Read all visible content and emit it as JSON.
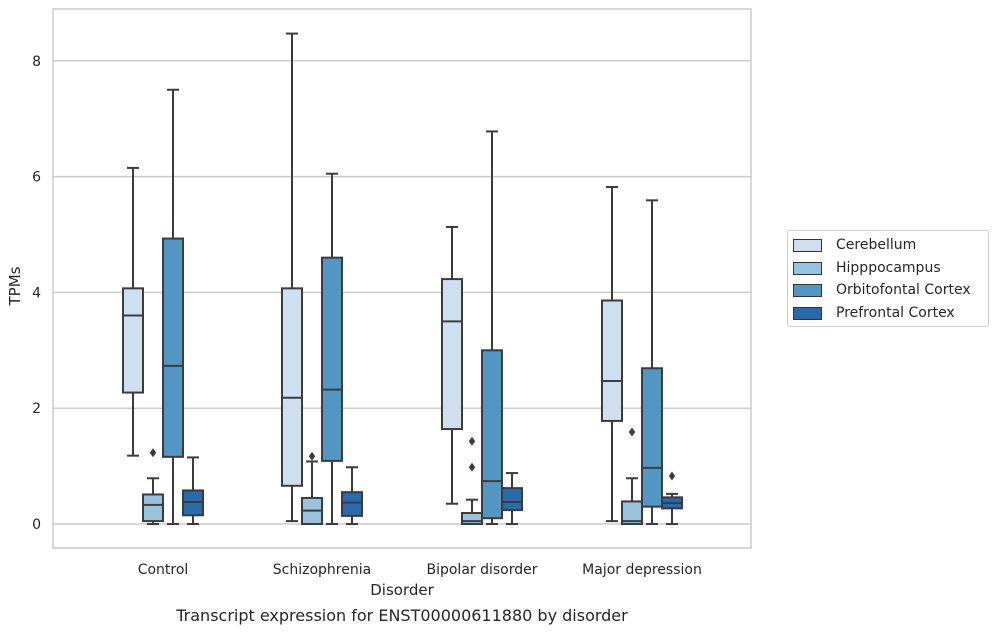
{
  "chart_data": {
    "type": "box",
    "title": "Transcript expression for ENST00000611880 by disorder",
    "xlabel": "Disorder",
    "ylabel": "TPMs",
    "ylim": [
      -0.4,
      8.9
    ],
    "yticks": [
      0,
      2,
      4,
      6,
      8
    ],
    "grid": "horizontal",
    "legend_position": "right",
    "categories": [
      "Control",
      "Schizophrenia",
      "Bipolar disorder",
      "Major depression"
    ],
    "series": [
      {
        "name": "Cerebellum",
        "color": "#d0dff0",
        "boxes": [
          {
            "whislo": 1.18,
            "q1": 2.27,
            "med": 3.6,
            "q3": 4.07,
            "whishi": 6.15,
            "fliers": []
          },
          {
            "whislo": 0.05,
            "q1": 0.66,
            "med": 2.18,
            "q3": 4.07,
            "whishi": 8.47,
            "fliers": []
          },
          {
            "whislo": 0.35,
            "q1": 1.64,
            "med": 3.5,
            "q3": 4.23,
            "whishi": 5.13,
            "fliers": []
          },
          {
            "whislo": 0.05,
            "q1": 1.78,
            "med": 2.47,
            "q3": 3.86,
            "whishi": 5.82,
            "fliers": []
          }
        ]
      },
      {
        "name": "Hipppocampus",
        "color": "#98c2dd",
        "boxes": [
          {
            "whislo": 0.0,
            "q1": 0.05,
            "med": 0.33,
            "q3": 0.51,
            "whishi": 0.79,
            "fliers": [
              1.23
            ]
          },
          {
            "whislo": 0.0,
            "q1": 0.0,
            "med": 0.23,
            "q3": 0.45,
            "whishi": 1.08,
            "fliers": [
              1.17
            ]
          },
          {
            "whislo": 0.0,
            "q1": 0.0,
            "med": 0.05,
            "q3": 0.19,
            "whishi": 0.42,
            "fliers": [
              0.98,
              1.43
            ]
          },
          {
            "whislo": 0.0,
            "q1": 0.0,
            "med": 0.05,
            "q3": 0.39,
            "whishi": 0.79,
            "fliers": [
              1.59
            ]
          }
        ]
      },
      {
        "name": "Orbitofontal Cortex",
        "color": "#5496c3",
        "boxes": [
          {
            "whislo": 0.0,
            "q1": 1.16,
            "med": 2.73,
            "q3": 4.93,
            "whishi": 7.5,
            "fliers": []
          },
          {
            "whislo": 0.0,
            "q1": 1.09,
            "med": 2.32,
            "q3": 4.6,
            "whishi": 6.05,
            "fliers": []
          },
          {
            "whislo": 0.0,
            "q1": 0.1,
            "med": 0.74,
            "q3": 3.0,
            "whishi": 6.78,
            "fliers": []
          },
          {
            "whislo": 0.0,
            "q1": 0.3,
            "med": 0.97,
            "q3": 2.69,
            "whishi": 5.59,
            "fliers": []
          }
        ]
      },
      {
        "name": "Prefrontal Cortex",
        "color": "#2a6aab",
        "boxes": [
          {
            "whislo": 0.0,
            "q1": 0.15,
            "med": 0.38,
            "q3": 0.58,
            "whishi": 1.15,
            "fliers": []
          },
          {
            "whislo": 0.0,
            "q1": 0.14,
            "med": 0.37,
            "q3": 0.55,
            "whishi": 0.98,
            "fliers": []
          },
          {
            "whislo": 0.0,
            "q1": 0.24,
            "med": 0.38,
            "q3": 0.62,
            "whishi": 0.88,
            "fliers": []
          },
          {
            "whislo": 0.0,
            "q1": 0.27,
            "med": 0.36,
            "q3": 0.46,
            "whishi": 0.52,
            "fliers": [
              0.83
            ]
          }
        ]
      }
    ]
  }
}
